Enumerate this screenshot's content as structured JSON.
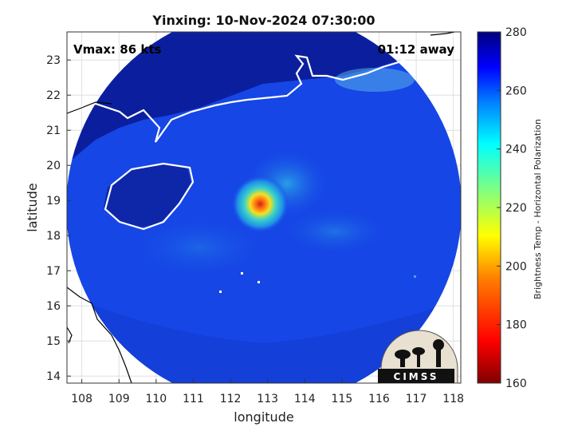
{
  "title": "Yinxing: 10-Nov-2024 07:30:00",
  "annotations": {
    "vmax": "Vmax: 86 kts",
    "time_away": "01:12 away"
  },
  "x_axis": {
    "label": "longitude",
    "range": [
      107.6,
      118.2
    ],
    "ticks": [
      "108",
      "109",
      "110",
      "111",
      "112",
      "113",
      "114",
      "115",
      "116",
      "117",
      "118"
    ]
  },
  "y_axis": {
    "label": "latitude",
    "range": [
      13.8,
      23.8
    ],
    "ticks": [
      "14",
      "15",
      "16",
      "17",
      "18",
      "19",
      "20",
      "21",
      "22",
      "23"
    ]
  },
  "colorbar": {
    "label": "Brightness Temp - Horizontal Polarization",
    "range": [
      160,
      280
    ],
    "ticks": [
      "280",
      "260",
      "240",
      "220",
      "200",
      "180",
      "160"
    ],
    "colormap": "jet"
  },
  "storm": {
    "center_lon": 112.8,
    "center_lat": 18.9,
    "min_brightness_temp": 195,
    "scan_radius_deg": 5.5
  },
  "logo": {
    "text": "CIMSS"
  },
  "colors": {
    "background_cold": "#0b1f9e",
    "scan_fill": "#1646e6",
    "eyewall_warm": "#e03a10",
    "outside_map": "#ffffff",
    "coast": "#ffffff",
    "border": "#000000"
  }
}
